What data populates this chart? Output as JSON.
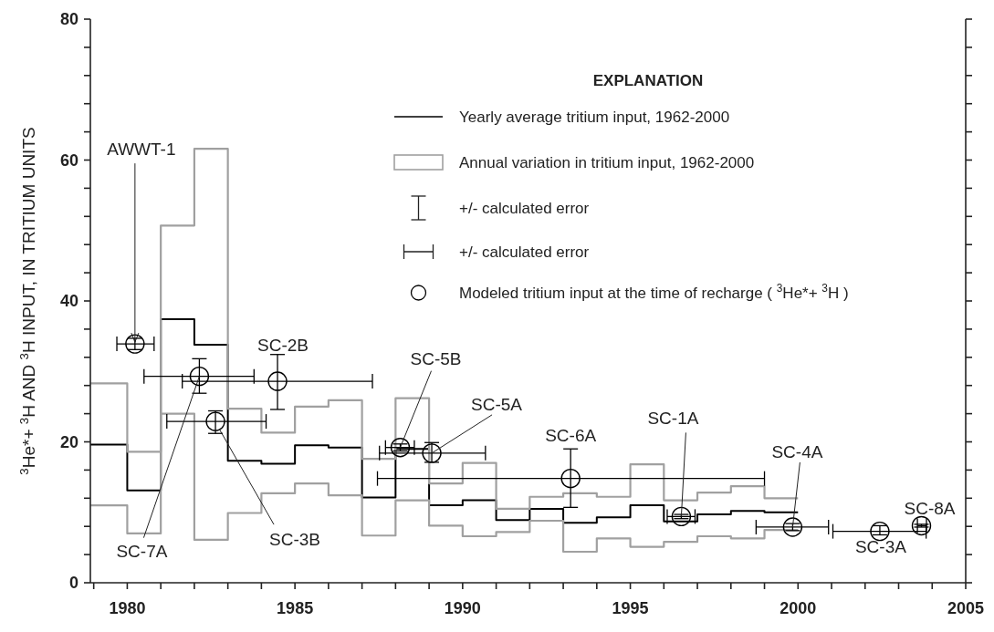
{
  "chart_data": {
    "type": "line",
    "ylabel": "$^{3}$He*+ $^{3}$H AND $^{3}$H INPUT, IN TRITIUM UNITS",
    "legend_title": "EXPLANATION",
    "legend": "top right",
    "grid": false,
    "xlim": [
      1978.9,
      2005
    ],
    "xticks": [
      {
        "value": 1979,
        "label": null
      },
      1980,
      {
        "value": 1981,
        "label": null
      },
      {
        "value": 1982,
        "label": null
      },
      {
        "value": 1983,
        "label": null
      },
      {
        "value": 1984,
        "label": null
      },
      1985,
      {
        "value": 1986,
        "label": null
      },
      {
        "value": 1987,
        "label": null
      },
      {
        "value": 1988,
        "label": null
      },
      {
        "value": 1989,
        "label": null
      },
      1990,
      {
        "value": 1991,
        "label": null
      },
      {
        "value": 1992,
        "label": null
      },
      {
        "value": 1993,
        "label": null
      },
      {
        "value": 1994,
        "label": null
      },
      1995,
      {
        "value": 1996,
        "label": null
      },
      {
        "value": 1997,
        "label": null
      },
      {
        "value": 1998,
        "label": null
      },
      {
        "value": 1999,
        "label": null
      },
      2000,
      {
        "value": 2001,
        "label": null
      },
      {
        "value": 2002,
        "label": null
      },
      {
        "value": 2003,
        "label": null
      },
      {
        "value": 2004,
        "label": null
      },
      2005
    ],
    "ylim": [
      0,
      80
    ],
    "yticks": [
      0,
      {
        "value": 4,
        "label": null
      },
      {
        "value": 8,
        "label": null
      },
      {
        "value": 12,
        "label": null
      },
      {
        "value": 16,
        "label": null
      },
      20,
      {
        "value": 24,
        "label": null
      },
      {
        "value": 28,
        "label": null
      },
      {
        "value": 32,
        "label": null
      },
      {
        "value": 36,
        "label": null
      },
      40,
      {
        "value": 44,
        "label": null
      },
      {
        "value": 48,
        "label": null
      },
      {
        "value": 52,
        "label": null
      },
      {
        "value": 56,
        "label": null
      },
      60,
      {
        "value": 64,
        "label": null
      },
      {
        "value": 68,
        "label": null
      },
      {
        "value": 72,
        "label": null
      },
      {
        "value": 76,
        "label": null
      },
      80
    ],
    "series": [
      {
        "type": "step",
        "name": "Yearly average tritium input, 1962-2000",
        "color": "#000000",
        "x": [
          1978.9,
          1980,
          1981,
          1982,
          1983,
          1984,
          1985,
          1986,
          1987,
          1988,
          1989,
          1990,
          1991,
          1992,
          1993,
          1994,
          1995,
          1996,
          1997,
          1998,
          1999,
          2000
        ],
        "values": [
          19.6,
          13.1,
          37.4,
          33.8,
          17.3,
          16.9,
          19.5,
          19.2,
          12.1,
          19.0,
          11.0,
          11.7,
          8.9,
          10.5,
          8.5,
          9.3,
          11.0,
          8.7,
          9.7,
          10.2,
          10.0,
          10.0
        ]
      },
      {
        "type": "step",
        "name": "Annual variation in tritium input, 1962-2000",
        "color": "#a0a0a0",
        "x": [
          1978.9,
          1980,
          1981,
          1982,
          1983,
          1984,
          1985,
          1986,
          1987,
          1988,
          1989,
          1990,
          1991,
          1992,
          1993,
          1994,
          1995,
          1996,
          1997,
          1998,
          1999,
          2000
        ],
        "values": [
          28.3,
          18.6,
          50.7,
          61.6,
          24.7,
          21.3,
          25.0,
          25.9,
          17.6,
          26.2,
          14.1,
          17.0,
          10.5,
          12.2,
          12.7,
          12.2,
          16.8,
          11.7,
          12.8,
          13.7,
          12.0,
          12.0
        ]
      },
      {
        "type": "step",
        "color": "#a0a0a0",
        "x": [
          1978.9,
          1980,
          1981,
          1982,
          1983,
          1984,
          1985,
          1986,
          1987,
          1988,
          1989,
          1990,
          1991,
          1992,
          1993,
          1994,
          1995,
          1996,
          1997,
          1998,
          1999,
          2000
        ],
        "values": [
          11.0,
          7.0,
          24.0,
          6.1,
          9.9,
          12.7,
          14.1,
          12.4,
          6.7,
          11.7,
          8.1,
          6.6,
          7.2,
          8.8,
          4.4,
          6.3,
          5.1,
          5.8,
          6.6,
          6.3,
          7.5,
          7.5
        ]
      },
      {
        "type": "scatter",
        "name": "Modeled tritium input at the time of recharge ( $^{3}$He*+ $^{3}$H )",
        "color": "#000000",
        "marker": "circle",
        "x": [
          1980.23,
          1982.15,
          1984.48,
          1982.63,
          1988.14,
          1989.08,
          1993.22,
          1996.52,
          1999.84,
          2002.44,
          2003.68
        ],
        "values": [
          33.9,
          29.3,
          28.6,
          22.9,
          19.2,
          18.4,
          14.8,
          9.4,
          7.9,
          7.3,
          8.1
        ],
        "errors": [
          [
            33.1,
            34.7
          ],
          [
            26.9,
            31.8
          ],
          [
            24.6,
            32.4
          ],
          [
            21.2,
            24.4
          ],
          [
            18.7,
            19.7
          ],
          [
            17.1,
            19.9
          ],
          [
            10.7,
            19.0
          ],
          [
            9.1,
            9.7
          ],
          [
            7.4,
            8.4
          ],
          [
            6.8,
            8.1
          ],
          [
            7.9,
            8.3
          ]
        ],
        "xerrors": [
          [
            1979.69,
            1980.8
          ],
          [
            1980.5,
            1983.78
          ],
          [
            1981.64,
            1987.31
          ],
          [
            1981.18,
            1984.14
          ],
          [
            1987.7,
            1988.56
          ],
          [
            1987.52,
            1990.68
          ],
          [
            1987.46,
            1999.0
          ],
          [
            1996.1,
            1996.93
          ],
          [
            1998.75,
            2000.91
          ],
          [
            2001.04,
            2003.82
          ],
          [
            2003.56,
            2003.83
          ]
        ]
      }
    ],
    "annotations": [
      "+/- calculated error",
      "+/- calculated error",
      {
        "text": "AWWT-1",
        "x": 1980.23,
        "y": 33.9
      },
      {
        "text": "SC-7A",
        "x": 1982.15,
        "y": 29.3
      },
      {
        "text": "SC-2B",
        "x": 1984.48,
        "y": 28.6
      },
      {
        "text": "SC-3B",
        "x": 1982.63,
        "y": 22.9
      },
      {
        "text": "SC-5B",
        "x": 1988.14,
        "y": 19.2
      },
      {
        "text": "SC-5A",
        "x": 1989.08,
        "y": 18.4
      },
      {
        "text": "SC-6A",
        "x": 1993.22,
        "y": 14.8
      },
      {
        "text": "SC-1A",
        "x": 1996.52,
        "y": 9.4
      },
      {
        "text": "SC-4A",
        "x": 1999.84,
        "y": 7.9
      },
      {
        "text": "SC-3A",
        "x": 2002.44,
        "y": 7.3
      },
      {
        "text": "SC-8A",
        "x": 2003.68,
        "y": 8.1
      }
    ]
  }
}
